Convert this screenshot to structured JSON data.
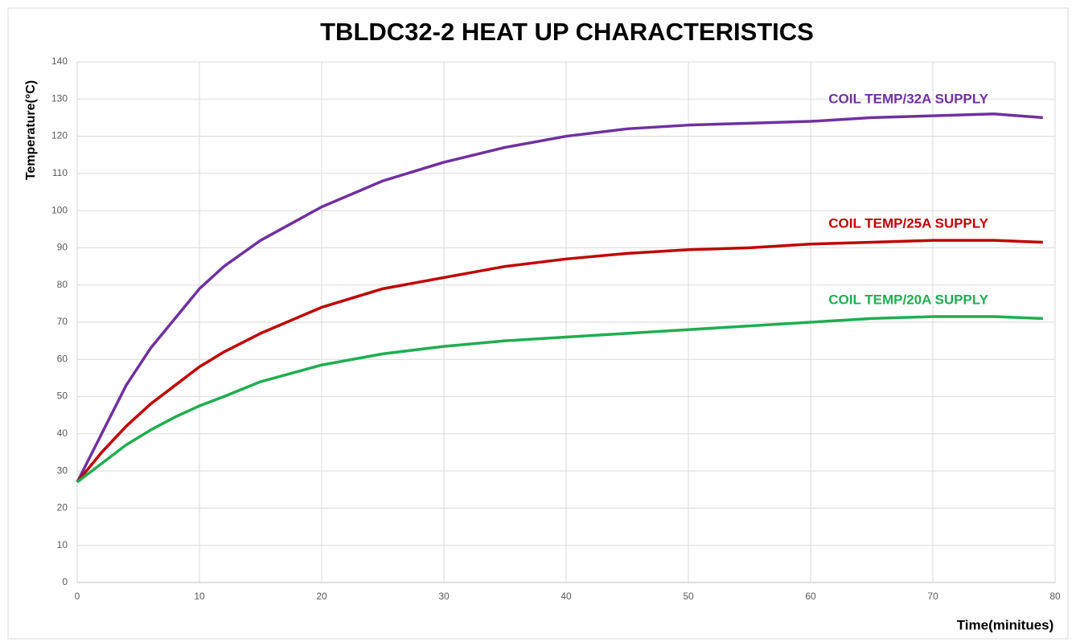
{
  "chart_data": {
    "type": "line",
    "title": "TBLDC32-2 HEAT UP CHARACTERISTICS",
    "x_label": "Time(minitues)",
    "y_label": "Temperature(°C)",
    "x": [
      0,
      2,
      4,
      6,
      8,
      10,
      12,
      15,
      20,
      25,
      30,
      35,
      40,
      45,
      50,
      55,
      60,
      65,
      70,
      75,
      79
    ],
    "series": [
      {
        "name": "COIL TEMP/32A SUPPLY",
        "color": "#7030a0",
        "values": [
          27,
          40,
          53,
          63,
          71,
          79,
          85,
          92,
          101,
          108,
          113,
          117,
          120,
          122,
          123,
          123.5,
          124,
          125,
          125.5,
          126,
          125
        ]
      },
      {
        "name": "COIL TEMP/25A SUPPLY",
        "color": "#c00000",
        "values": [
          27,
          35,
          42,
          48,
          53,
          58,
          62,
          67,
          74,
          79,
          82,
          85,
          87,
          88.5,
          89.5,
          90,
          91,
          91.5,
          92,
          92,
          91.5
        ]
      },
      {
        "name": "COIL TEMP/20A SUPPLY",
        "color": "#1fae50",
        "values": [
          27,
          32,
          37,
          41,
          44.5,
          47.5,
          50,
          54,
          58.5,
          61.5,
          63.5,
          65,
          66,
          67,
          68,
          69,
          70,
          71,
          71.5,
          71.5,
          71
        ]
      }
    ],
    "xlim": [
      0,
      80
    ],
    "xticks": [
      0,
      10,
      20,
      30,
      40,
      50,
      60,
      70,
      80
    ],
    "ylim": [
      0,
      140
    ],
    "yticks": [
      0,
      10,
      20,
      30,
      40,
      50,
      60,
      70,
      80,
      90,
      100,
      110,
      120,
      130,
      140
    ],
    "grid": true
  }
}
